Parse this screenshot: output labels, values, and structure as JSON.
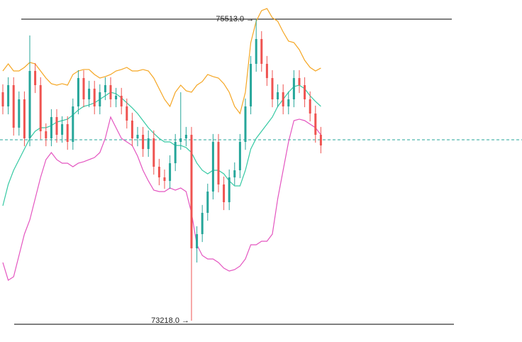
{
  "chart_data": {
    "type": "candlestick",
    "ylim": [
      73056,
      75659
    ],
    "up_color": "#26a69a",
    "down_color": "#ef5350",
    "open": [
      74957,
      74849,
      75011,
      74687,
      74903,
      74606,
      75119,
      75011,
      74660,
      74606,
      74768,
      74633,
      74714,
      74579,
      74849,
      75065,
      74903,
      74984,
      74849,
      74957,
      75011,
      74903,
      74930,
      74849,
      74741,
      74606,
      74633,
      74525,
      74606,
      74390,
      74309,
      74282,
      74417,
      74579,
      74606,
      74633,
      73769,
      73877,
      74039,
      74201,
      74579,
      74255,
      74120,
      74309,
      74363,
      74579,
      74849,
      75173,
      75362,
      75173,
      75065,
      74903,
      74957,
      74849,
      74903,
      75065,
      75011,
      74903,
      74795,
      74633
    ],
    "high": [
      75017,
      75071,
      75071,
      74963,
      74963,
      75389,
      75179,
      75071,
      74720,
      74828,
      74828,
      74774,
      74774,
      74909,
      75125,
      75125,
      75044,
      75044,
      75017,
      75071,
      75071,
      74990,
      74990,
      74909,
      74801,
      74693,
      74693,
      74666,
      74666,
      74450,
      74369,
      74477,
      74639,
      74957,
      74693,
      74693,
      73937,
      74099,
      74261,
      74639,
      74639,
      74315,
      74369,
      74423,
      74639,
      74909,
      75233,
      75513,
      75422,
      75233,
      75125,
      75017,
      75017,
      74963,
      75125,
      75125,
      75071,
      74963,
      74855,
      74693
    ],
    "low": [
      74789,
      74789,
      74627,
      74627,
      74546,
      74546,
      74951,
      74600,
      74546,
      74546,
      74573,
      74573,
      74519,
      74519,
      74789,
      74843,
      74843,
      74789,
      74789,
      74897,
      74843,
      74843,
      74789,
      74681,
      74546,
      74546,
      74465,
      74465,
      74330,
      74249,
      74222,
      74222,
      74357,
      74519,
      74546,
      73218,
      73661,
      73817,
      73979,
      74141,
      74195,
      74060,
      74060,
      74249,
      74303,
      74519,
      74789,
      75113,
      75113,
      75005,
      74843,
      74843,
      74789,
      74789,
      74843,
      74951,
      74843,
      74735,
      74573,
      74492
    ],
    "close": [
      74849,
      75011,
      74687,
      74903,
      74606,
      75119,
      75011,
      74660,
      74606,
      74768,
      74633,
      74714,
      74579,
      74849,
      75065,
      74903,
      74984,
      74849,
      74957,
      75011,
      74903,
      74930,
      74849,
      74741,
      74606,
      74633,
      74525,
      74606,
      74390,
      74309,
      74282,
      74417,
      74579,
      74606,
      74633,
      73769,
      73877,
      74039,
      74201,
      74579,
      74255,
      74120,
      74309,
      74363,
      74579,
      74849,
      75173,
      75362,
      75173,
      75065,
      74903,
      74957,
      74849,
      74903,
      75065,
      75011,
      74903,
      74795,
      74633,
      74552
    ],
    "series": [
      {
        "color": "#f5a623",
        "values": [
          75119,
          75173,
          75119,
          75119,
          75146,
          75184,
          75173,
          75119,
          75065,
          75022,
          75011,
          75022,
          75011,
          75092,
          75119,
          75130,
          75130,
          75092,
          75065,
          75076,
          75092,
          75119,
          75130,
          75146,
          75119,
          75119,
          75130,
          75119,
          75065,
          74984,
          74903,
          74849,
          74957,
          75011,
          74968,
          74957,
          75011,
          75038,
          75092,
          75076,
          75065,
          75022,
          74957,
          74849,
          74795,
          74957,
          75335,
          75497,
          75578,
          75594,
          75524,
          75497,
          75416,
          75346,
          75335,
          75281,
          75200,
          75146,
          75119,
          75141
        ]
      },
      {
        "color": "#35c9a3",
        "values": [
          74093,
          74255,
          74363,
          74444,
          74525,
          74606,
          74660,
          74687,
          74687,
          74703,
          74730,
          74741,
          74752,
          74784,
          74822,
          74849,
          74860,
          74876,
          74903,
          74930,
          74957,
          74946,
          74914,
          74876,
          74838,
          74795,
          74741,
          74687,
          74644,
          74606,
          74579,
          74579,
          74552,
          74552,
          74536,
          74498,
          74417,
          74363,
          74336,
          74363,
          74363,
          74336,
          74282,
          74244,
          74244,
          74363,
          74525,
          74606,
          74660,
          74714,
          74768,
          74849,
          74903,
          74957,
          75000,
          75011,
          74984,
          74930,
          74887,
          74849
        ]
      },
      {
        "color": "#e455c0",
        "values": [
          73661,
          73526,
          73553,
          73715,
          73877,
          73985,
          74147,
          74309,
          74444,
          74498,
          74444,
          74417,
          74417,
          74390,
          74417,
          74428,
          74444,
          74460,
          74498,
          74606,
          74768,
          74687,
          74606,
          74579,
          74552,
          74471,
          74363,
          74282,
          74212,
          74201,
          74201,
          74228,
          74212,
          74228,
          74201,
          74039,
          73796,
          73715,
          73688,
          73688,
          73661,
          73618,
          73596,
          73607,
          73634,
          73688,
          73796,
          73796,
          73823,
          73823,
          73877,
          74147,
          74363,
          74579,
          74741,
          74752,
          74741,
          74714,
          74687,
          74633
        ]
      }
    ],
    "last_price": 74595,
    "last_price_color": "#26a69a",
    "max_marker": {
      "value": 75513,
      "label": "75513.0 →"
    },
    "min_marker": {
      "value": 73218,
      "label": "73218.0 →"
    }
  }
}
